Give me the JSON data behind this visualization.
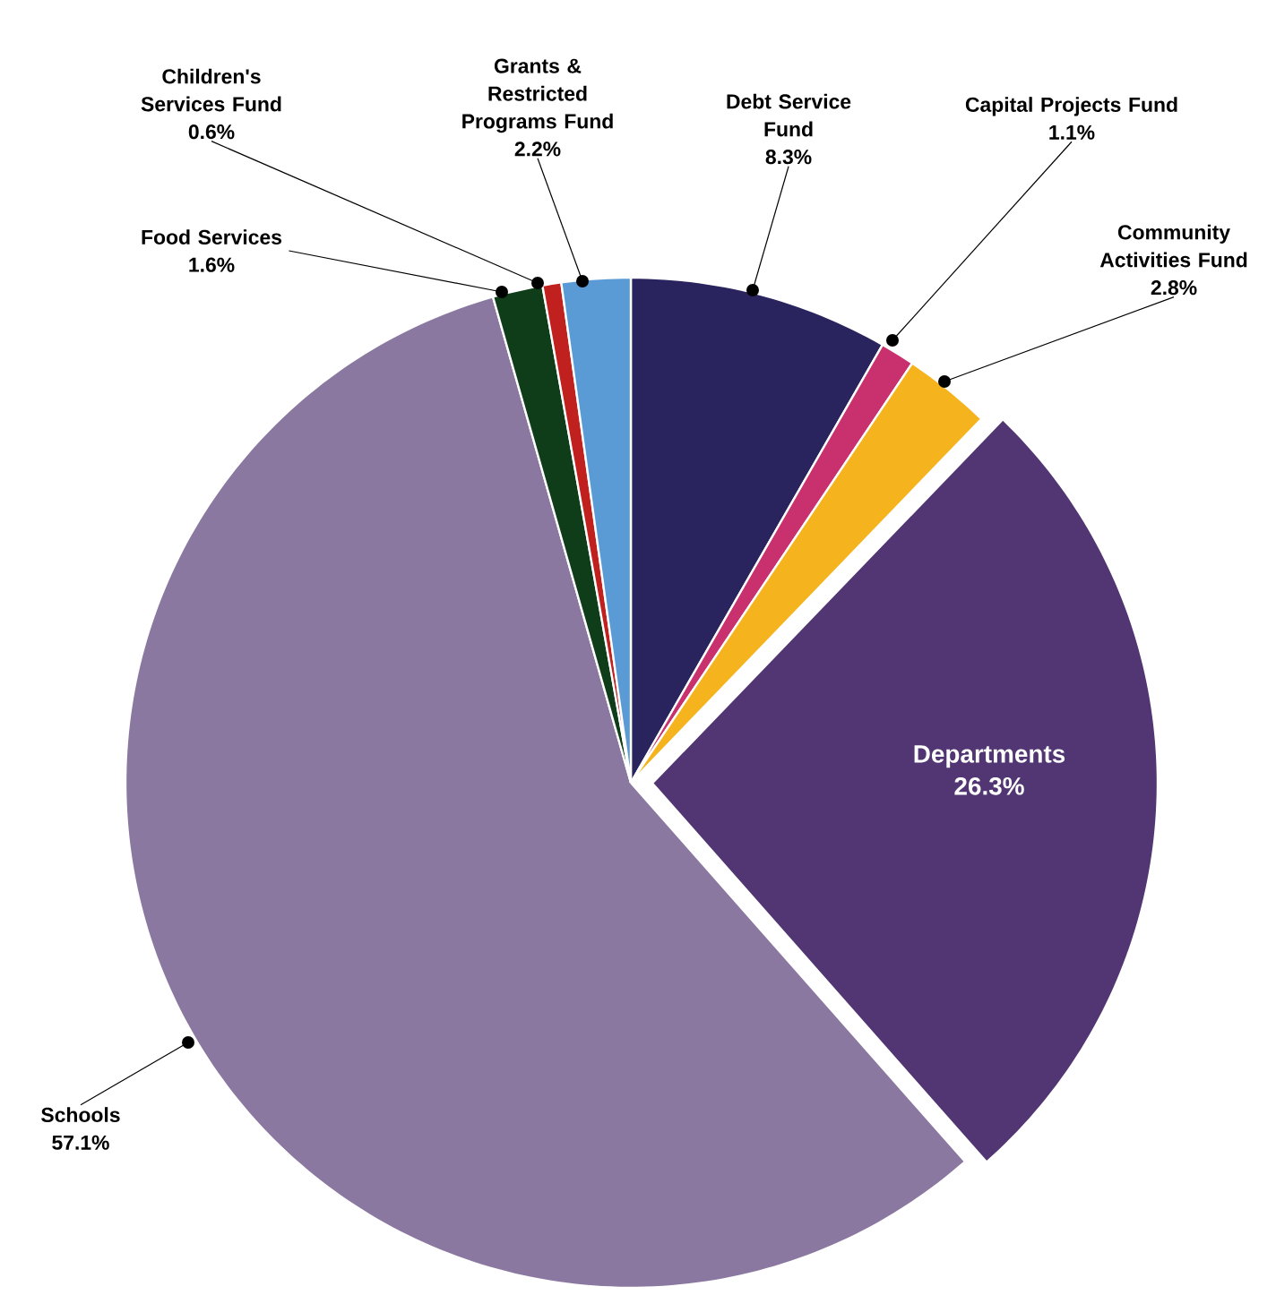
{
  "chart_data": {
    "type": "pie",
    "categories": [
      "Debt Service Fund",
      "Capital Projects Fund",
      "Community Activities Fund",
      "Departments",
      "Schools",
      "Food Services",
      "Children's Services Fund",
      "Grants & Restricted Programs Fund"
    ],
    "values": [
      8.3,
      1.1,
      2.8,
      26.3,
      57.1,
      1.6,
      0.6,
      2.2
    ],
    "value_labels": [
      "8.3%",
      "1.1%",
      "2.8%",
      "26.3%",
      "57.1%",
      "1.6%",
      "0.6%",
      "2.2%"
    ],
    "colors": [
      "#2a245e",
      "#c8306e",
      "#f5b31d",
      "#523673",
      "#8a78a0",
      "#0f3d1a",
      "#c0201e",
      "#5b9bd5"
    ]
  }
}
